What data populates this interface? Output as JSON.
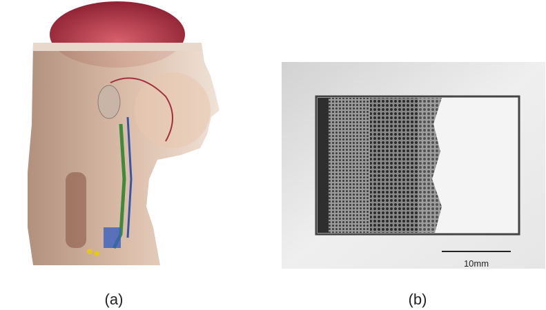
{
  "panels": [
    {
      "label": "(a)"
    },
    {
      "label": "(b)",
      "scale_bar": "10mm"
    }
  ]
}
